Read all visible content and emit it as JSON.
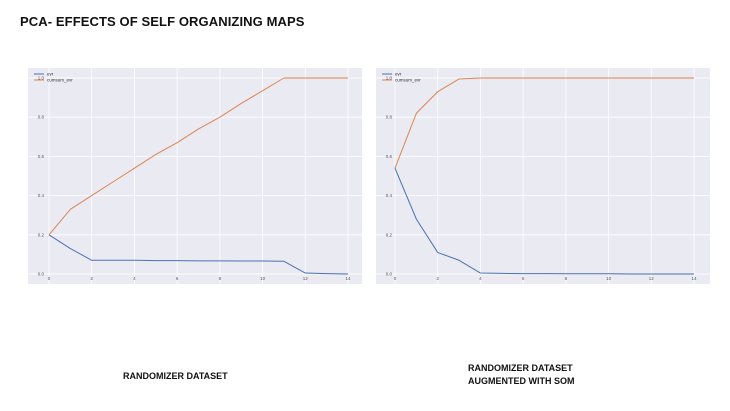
{
  "page": {
    "title": "PCA- EFFECTS OF SELF ORGANIZING MAPS"
  },
  "colors": {
    "plot_background": "#eaeaf2",
    "grid": "#ffffff",
    "evr_line": "#4c72b0",
    "cumsum_line": "#dd8452"
  },
  "captions": {
    "left": "RANDOMIZER DATASET",
    "right_line1": "RANDOMIZER  DATASET",
    "right_line2": "AUGMENTED WITH SOM"
  },
  "chart_data": [
    {
      "type": "line",
      "title": "",
      "xlabel": "",
      "ylabel": "",
      "xlim": [
        0,
        14
      ],
      "ylim": [
        0.0,
        1.0
      ],
      "x_ticks": [
        "0",
        "2",
        "4",
        "6",
        "8",
        "10",
        "12",
        "14"
      ],
      "y_ticks": [
        "0.0",
        "0.2",
        "0.4",
        "0.6",
        "0.8",
        "1.0"
      ],
      "grid": true,
      "legend_position": "top-left",
      "x": [
        0,
        1,
        2,
        3,
        4,
        5,
        6,
        7,
        8,
        9,
        10,
        11,
        12,
        13,
        14
      ],
      "series": [
        {
          "name": "evr",
          "color": "#4c72b0",
          "values": [
            0.2,
            0.13,
            0.07,
            0.07,
            0.07,
            0.068,
            0.068,
            0.067,
            0.067,
            0.066,
            0.066,
            0.065,
            0.005,
            0.002,
            0.0
          ]
        },
        {
          "name": "cumsum_evr",
          "color": "#dd8452",
          "values": [
            0.2,
            0.33,
            0.4,
            0.47,
            0.54,
            0.61,
            0.67,
            0.74,
            0.8,
            0.87,
            0.935,
            1.0,
            1.0,
            1.0,
            1.0
          ]
        }
      ]
    },
    {
      "type": "line",
      "title": "",
      "xlabel": "",
      "ylabel": "",
      "xlim": [
        0,
        14
      ],
      "ylim": [
        0.0,
        1.0
      ],
      "x_ticks": [
        "0",
        "2",
        "4",
        "6",
        "8",
        "10",
        "12",
        "14"
      ],
      "y_ticks": [
        "0.0",
        "0.2",
        "0.4",
        "0.6",
        "0.8",
        "1.0"
      ],
      "grid": true,
      "legend_position": "top-left",
      "x": [
        0,
        1,
        2,
        3,
        4,
        5,
        6,
        7,
        8,
        9,
        10,
        11,
        12,
        13,
        14
      ],
      "series": [
        {
          "name": "evr",
          "color": "#4c72b0",
          "values": [
            0.54,
            0.28,
            0.11,
            0.07,
            0.005,
            0.003,
            0.002,
            0.002,
            0.001,
            0.001,
            0.001,
            0.0,
            0.0,
            0.0,
            0.0
          ]
        },
        {
          "name": "cumsum_evr",
          "color": "#dd8452",
          "values": [
            0.54,
            0.82,
            0.93,
            0.995,
            1.0,
            1.0,
            1.0,
            1.0,
            1.0,
            1.0,
            1.0,
            1.0,
            1.0,
            1.0,
            1.0
          ]
        }
      ]
    }
  ]
}
